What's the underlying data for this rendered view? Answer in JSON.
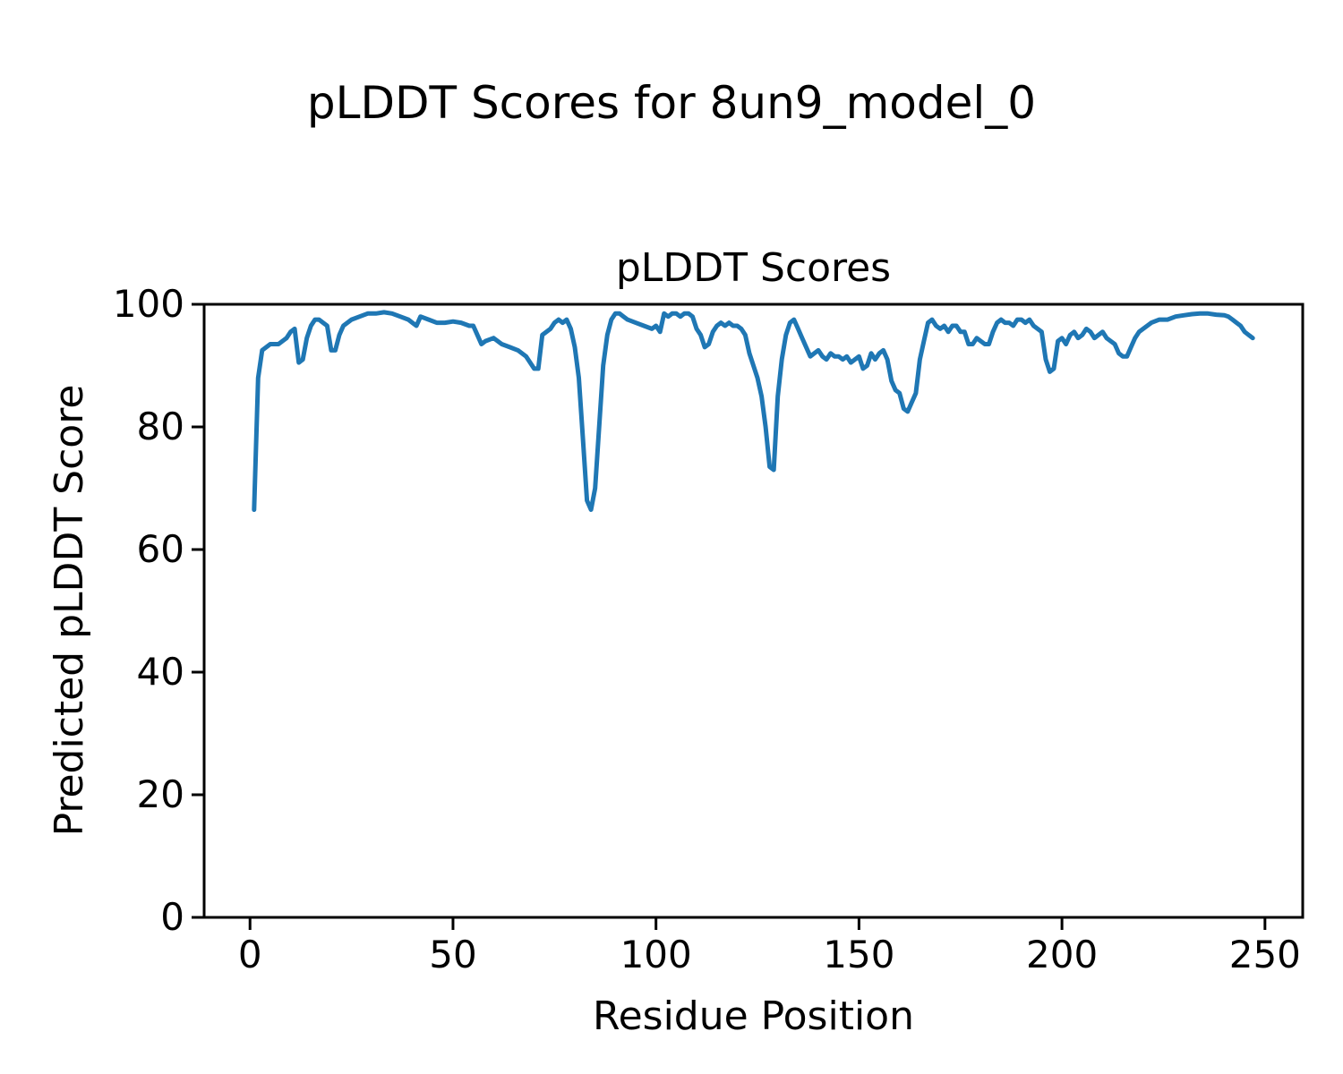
{
  "figure": {
    "title": "pLDDT Scores for 8un9_model_0",
    "background_color": "#ffffff",
    "text_color": "#000000"
  },
  "chart_data": {
    "type": "line",
    "title": "pLDDT Scores",
    "xlabel": "Residue Position",
    "ylabel": "Predicted pLDDT Score",
    "line_color": "#1f77b4",
    "grid": false,
    "legend_position": "none",
    "xlim": [
      -11.3,
      259.3
    ],
    "ylim": [
      0,
      100
    ],
    "xticks": [
      0,
      50,
      100,
      150,
      200,
      250
    ],
    "yticks": [
      0,
      20,
      40,
      60,
      80,
      100
    ],
    "points": [
      [
        1,
        66.5
      ],
      [
        2,
        88
      ],
      [
        3,
        92.5
      ],
      [
        5,
        93.5
      ],
      [
        7,
        93.5
      ],
      [
        9,
        94.5
      ],
      [
        10,
        95.5
      ],
      [
        11,
        96
      ],
      [
        12,
        90.5
      ],
      [
        13,
        91
      ],
      [
        14,
        94.5
      ],
      [
        15,
        96.5
      ],
      [
        16,
        97.5
      ],
      [
        17,
        97.5
      ],
      [
        18,
        97
      ],
      [
        19,
        96.5
      ],
      [
        20,
        92.5
      ],
      [
        21,
        92.5
      ],
      [
        22,
        95
      ],
      [
        23,
        96.5
      ],
      [
        25,
        97.5
      ],
      [
        27,
        98
      ],
      [
        29,
        98.5
      ],
      [
        31,
        98.5
      ],
      [
        33,
        98.7
      ],
      [
        35,
        98.5
      ],
      [
        37,
        98
      ],
      [
        39,
        97.5
      ],
      [
        40,
        97
      ],
      [
        41,
        96.5
      ],
      [
        42,
        98
      ],
      [
        44,
        97.5
      ],
      [
        46,
        97
      ],
      [
        48,
        97
      ],
      [
        50,
        97.2
      ],
      [
        52,
        97
      ],
      [
        54,
        96.5
      ],
      [
        55,
        96.5
      ],
      [
        56,
        95
      ],
      [
        57,
        93.5
      ],
      [
        58,
        94
      ],
      [
        60,
        94.5
      ],
      [
        62,
        93.5
      ],
      [
        64,
        93
      ],
      [
        66,
        92.5
      ],
      [
        68,
        91.5
      ],
      [
        70,
        89.5
      ],
      [
        71,
        89.5
      ],
      [
        72,
        95
      ],
      [
        74,
        96
      ],
      [
        75,
        97
      ],
      [
        76,
        97.5
      ],
      [
        77,
        97
      ],
      [
        78,
        97.5
      ],
      [
        79,
        96
      ],
      [
        80,
        93
      ],
      [
        81,
        88
      ],
      [
        82,
        78
      ],
      [
        83,
        68
      ],
      [
        84,
        66.5
      ],
      [
        85,
        70
      ],
      [
        86,
        80
      ],
      [
        87,
        90
      ],
      [
        88,
        95
      ],
      [
        89,
        97.5
      ],
      [
        90,
        98.5
      ],
      [
        91,
        98.5
      ],
      [
        92,
        98
      ],
      [
        93,
        97.5
      ],
      [
        95,
        97
      ],
      [
        97,
        96.5
      ],
      [
        99,
        96
      ],
      [
        100,
        96.5
      ],
      [
        101,
        95.5
      ],
      [
        102,
        98.5
      ],
      [
        103,
        98
      ],
      [
        104,
        98.5
      ],
      [
        105,
        98.5
      ],
      [
        106,
        98
      ],
      [
        107,
        98.5
      ],
      [
        108,
        98.5
      ],
      [
        109,
        98
      ],
      [
        110,
        96
      ],
      [
        111,
        95
      ],
      [
        112,
        93
      ],
      [
        113,
        93.5
      ],
      [
        114,
        95.5
      ],
      [
        115,
        96.5
      ],
      [
        116,
        97
      ],
      [
        117,
        96.5
      ],
      [
        118,
        97
      ],
      [
        119,
        96.5
      ],
      [
        120,
        96.5
      ],
      [
        121,
        96
      ],
      [
        122,
        95
      ],
      [
        123,
        92
      ],
      [
        124,
        90
      ],
      [
        125,
        88
      ],
      [
        126,
        85
      ],
      [
        127,
        80
      ],
      [
        128,
        73.5
      ],
      [
        129,
        73
      ],
      [
        130,
        85
      ],
      [
        131,
        91
      ],
      [
        132,
        95
      ],
      [
        133,
        97
      ],
      [
        134,
        97.5
      ],
      [
        135,
        96
      ],
      [
        136,
        94.5
      ],
      [
        137,
        93
      ],
      [
        138,
        91.5
      ],
      [
        139,
        92
      ],
      [
        140,
        92.5
      ],
      [
        141,
        91.5
      ],
      [
        142,
        91
      ],
      [
        143,
        92
      ],
      [
        144,
        91.5
      ],
      [
        145,
        91.5
      ],
      [
        146,
        91
      ],
      [
        147,
        91.5
      ],
      [
        148,
        90.5
      ],
      [
        149,
        91
      ],
      [
        150,
        91.5
      ],
      [
        151,
        89.5
      ],
      [
        152,
        90
      ],
      [
        153,
        92
      ],
      [
        154,
        91
      ],
      [
        155,
        92
      ],
      [
        156,
        92.5
      ],
      [
        157,
        91
      ],
      [
        158,
        87.5
      ],
      [
        159,
        86
      ],
      [
        160,
        85.5
      ],
      [
        161,
        83
      ],
      [
        162,
        82.5
      ],
      [
        163,
        84
      ],
      [
        164,
        85.5
      ],
      [
        165,
        91
      ],
      [
        166,
        94
      ],
      [
        167,
        97
      ],
      [
        168,
        97.5
      ],
      [
        169,
        96.5
      ],
      [
        170,
        96
      ],
      [
        171,
        96.5
      ],
      [
        172,
        95.5
      ],
      [
        173,
        96.5
      ],
      [
        174,
        96.5
      ],
      [
        175,
        95.5
      ],
      [
        176,
        95.5
      ],
      [
        177,
        93.5
      ],
      [
        178,
        93.5
      ],
      [
        179,
        94.5
      ],
      [
        180,
        94
      ],
      [
        181,
        93.5
      ],
      [
        182,
        93.5
      ],
      [
        183,
        95.5
      ],
      [
        184,
        97
      ],
      [
        185,
        97.5
      ],
      [
        186,
        97
      ],
      [
        187,
        97
      ],
      [
        188,
        96.5
      ],
      [
        189,
        97.5
      ],
      [
        190,
        97.5
      ],
      [
        191,
        97
      ],
      [
        192,
        97.5
      ],
      [
        193,
        96.5
      ],
      [
        194,
        96
      ],
      [
        195,
        95.5
      ],
      [
        196,
        91
      ],
      [
        197,
        89
      ],
      [
        198,
        89.5
      ],
      [
        199,
        94
      ],
      [
        200,
        94.5
      ],
      [
        201,
        93.5
      ],
      [
        202,
        95
      ],
      [
        203,
        95.5
      ],
      [
        204,
        94.5
      ],
      [
        205,
        95
      ],
      [
        206,
        96
      ],
      [
        207,
        95.5
      ],
      [
        208,
        94.5
      ],
      [
        209,
        95
      ],
      [
        210,
        95.5
      ],
      [
        211,
        94.5
      ],
      [
        212,
        94
      ],
      [
        213,
        93.5
      ],
      [
        214,
        92
      ],
      [
        215,
        91.5
      ],
      [
        216,
        91.5
      ],
      [
        217,
        93
      ],
      [
        218,
        94.5
      ],
      [
        219,
        95.5
      ],
      [
        220,
        96
      ],
      [
        222,
        97
      ],
      [
        224,
        97.5
      ],
      [
        226,
        97.5
      ],
      [
        228,
        98
      ],
      [
        230,
        98.2
      ],
      [
        232,
        98.4
      ],
      [
        234,
        98.5
      ],
      [
        236,
        98.5
      ],
      [
        238,
        98.3
      ],
      [
        240,
        98.2
      ],
      [
        241,
        98
      ],
      [
        242,
        97.5
      ],
      [
        243,
        97
      ],
      [
        244,
        96.5
      ],
      [
        245,
        95.5
      ],
      [
        246,
        95
      ],
      [
        247,
        94.5
      ]
    ]
  }
}
